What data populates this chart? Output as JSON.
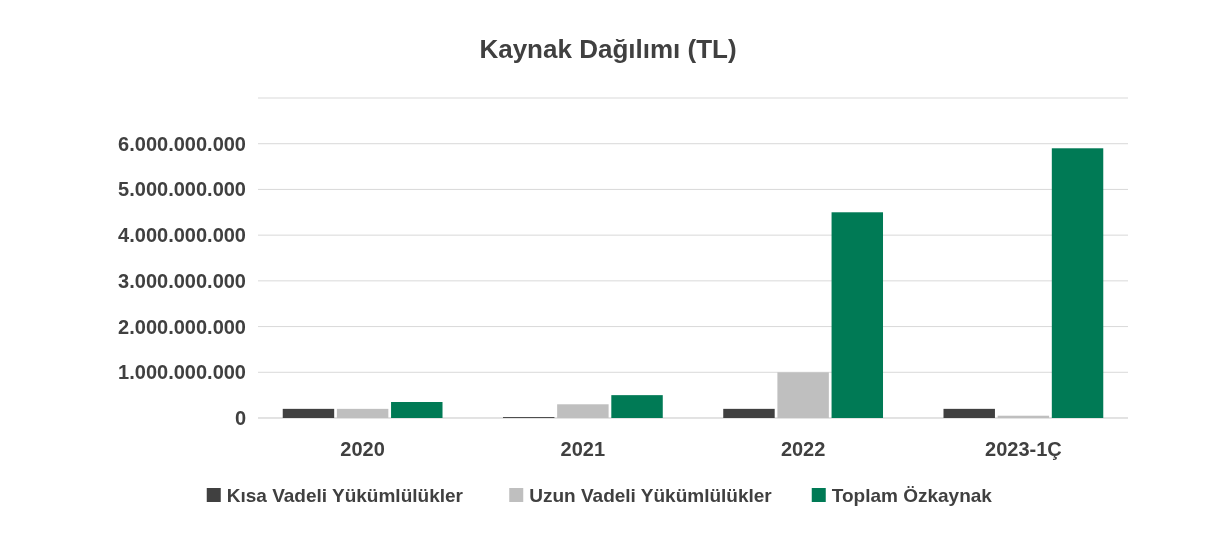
{
  "chart_data": {
    "type": "bar",
    "title": "Kaynak Dağılımı (TL)",
    "categories": [
      "2020",
      "2021",
      "2022",
      "2023-1Ç"
    ],
    "series": [
      {
        "name": "Kısa Vadeli Yükümlülükler",
        "color": "#404040",
        "values": [
          200000000,
          20000000,
          200000000,
          200000000
        ]
      },
      {
        "name": "Uzun Vadeli Yükümlülükler",
        "color": "#bfbfbf",
        "values": [
          200000000,
          300000000,
          1000000000,
          50000000
        ]
      },
      {
        "name": "Toplam Özkaynak",
        "color": "#007a55",
        "values": [
          350000000,
          500000000,
          4500000000,
          5900000000
        ]
      }
    ],
    "ylim": [
      0,
      7000000000
    ],
    "yticks": [
      {
        "value": 0,
        "label": "0"
      },
      {
        "value": 1000000000,
        "label": "1.000.000.000"
      },
      {
        "value": 2000000000,
        "label": "2.000.000.000"
      },
      {
        "value": 3000000000,
        "label": "3.000.000.000"
      },
      {
        "value": 4000000000,
        "label": "4.000.000.000"
      },
      {
        "value": 5000000000,
        "label": "5.000.000.000"
      },
      {
        "value": 6000000000,
        "label": "6.000.000.000"
      },
      {
        "value": 7000000000,
        "label": null
      }
    ],
    "grid": "y",
    "legend": "bottom"
  }
}
